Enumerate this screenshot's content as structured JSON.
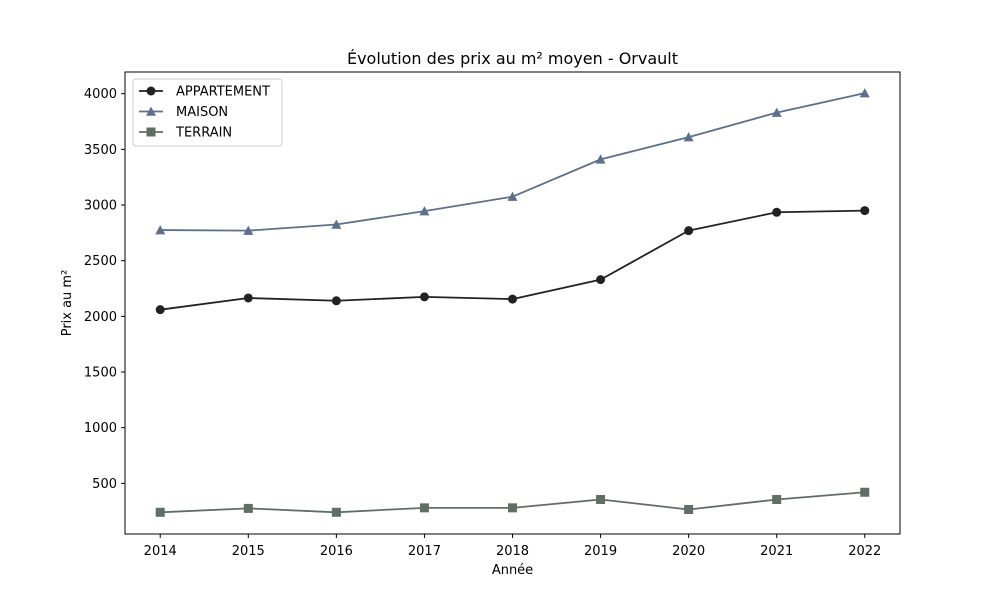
{
  "chart_data": {
    "type": "line",
    "title": "Évolution des prix au m² moyen - Orvault",
    "xlabel": "Année",
    "ylabel": "Prix au m²",
    "x": [
      2014,
      2015,
      2016,
      2017,
      2018,
      2019,
      2020,
      2021,
      2022
    ],
    "xlim": [
      2013.6,
      2022.4
    ],
    "ylim": [
      45,
      4195
    ],
    "yticks": [
      500,
      1000,
      1500,
      2000,
      2500,
      3000,
      3500,
      4000
    ],
    "grid": false,
    "legend_position": "top-left",
    "series": [
      {
        "name": "APPARTEMENT",
        "color": "#222222",
        "marker": "circle",
        "values": [
          2060,
          2165,
          2140,
          2175,
          2155,
          2330,
          2770,
          2935,
          2950
        ]
      },
      {
        "name": "MAISON",
        "color": "#5d6f8a",
        "marker": "triangle",
        "values": [
          2775,
          2770,
          2825,
          2945,
          3075,
          3410,
          3610,
          3830,
          4005
        ]
      },
      {
        "name": "TERRAIN",
        "color": "#5f6f66",
        "marker": "square",
        "values": [
          240,
          275,
          240,
          280,
          280,
          355,
          265,
          355,
          420
        ]
      }
    ]
  }
}
